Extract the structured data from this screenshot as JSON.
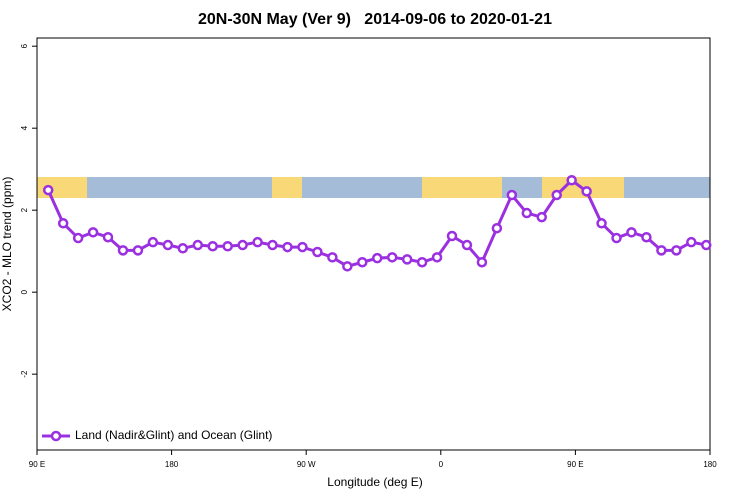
{
  "chart_data": {
    "type": "line",
    "title": "20N-30N May (Ver 9)   2014-09-06 to 2020-01-21",
    "x_label": "Longitude (deg E)",
    "y_label": "XCO2 - MLO trend (ppm)",
    "x": [
      97.5,
      107.5,
      117.5,
      127.5,
      137.5,
      147.5,
      157.5,
      167.5,
      177.5,
      187.5,
      197.5,
      207.5,
      217.5,
      227.5,
      237.5,
      247.5,
      257.5,
      267.5,
      277.5,
      287.5,
      297.5,
      307.5,
      317.5,
      327.5,
      337.5,
      347.5,
      357.5,
      367.5,
      377.5,
      387.5,
      397.5,
      407.5,
      417.5,
      427.5,
      437.5,
      447.5,
      457.5,
      467.5,
      477.5,
      487.5,
      497.5,
      507.5,
      517.5,
      527.5,
      537.5
    ],
    "series": [
      {
        "name": "Land (Nadir&Glint) and Ocean (Glint)",
        "color": "#9b30e0",
        "values": [
          2.49,
          1.68,
          1.32,
          1.46,
          1.34,
          1.02,
          1.02,
          1.22,
          1.15,
          1.07,
          1.15,
          1.12,
          1.12,
          1.15,
          1.22,
          1.15,
          1.1,
          1.1,
          0.98,
          0.85,
          0.63,
          0.73,
          0.83,
          0.85,
          0.8,
          0.73,
          0.85,
          1.37,
          1.15,
          0.73,
          1.56,
          2.37,
          1.93,
          1.83,
          2.37,
          2.73,
          2.46,
          1.68,
          1.32,
          1.46,
          1.34,
          1.02,
          1.02,
          1.22,
          1.15
        ]
      }
    ],
    "xlim": [
      90,
      540
    ],
    "xticks": [
      {
        "value": 90,
        "label": "90 E"
      },
      {
        "value": 180,
        "label": "180"
      },
      {
        "value": 270,
        "label": "90 W"
      },
      {
        "value": 360,
        "label": "0"
      },
      {
        "value": 450,
        "label": "90 E"
      },
      {
        "value": 540,
        "label": "180"
      }
    ],
    "ylim": [
      -3.85,
      6.2
    ],
    "yticks": [
      -2,
      0,
      2,
      4,
      6
    ],
    "legend": "bottom-left"
  }
}
